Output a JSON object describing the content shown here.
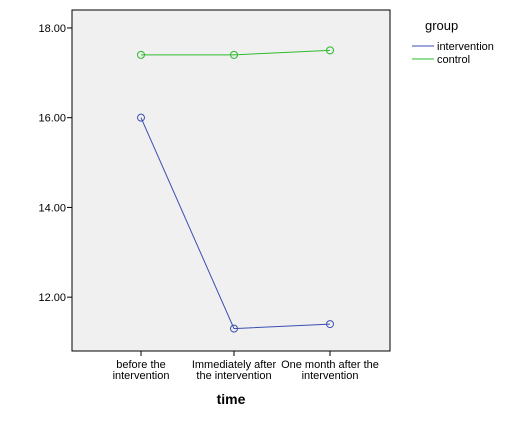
{
  "chart_data": {
    "type": "line",
    "categories": [
      [
        "before the",
        "intervention"
      ],
      [
        "Immediately after",
        "the intervention"
      ],
      [
        "One month after the",
        "intervention"
      ]
    ],
    "series": [
      {
        "name": "intervention",
        "values": [
          16.0,
          11.3,
          11.4
        ],
        "color": "#3a4fb0"
      },
      {
        "name": "control",
        "values": [
          17.4,
          17.4,
          17.5
        ],
        "color": "#2dbb2d"
      }
    ],
    "xlabel": "time",
    "ylabel": "",
    "ylim": [
      10.8,
      18.4
    ],
    "yticks": [
      12.0,
      14.0,
      16.0,
      18.0
    ],
    "ytick_labels": [
      "12.00",
      "14.00",
      "16.00",
      "18.00"
    ],
    "legend_title": "group",
    "legend_position": "top-right",
    "background_color": "#f0f0f0",
    "grid": false,
    "markers": "hollow-circle"
  }
}
